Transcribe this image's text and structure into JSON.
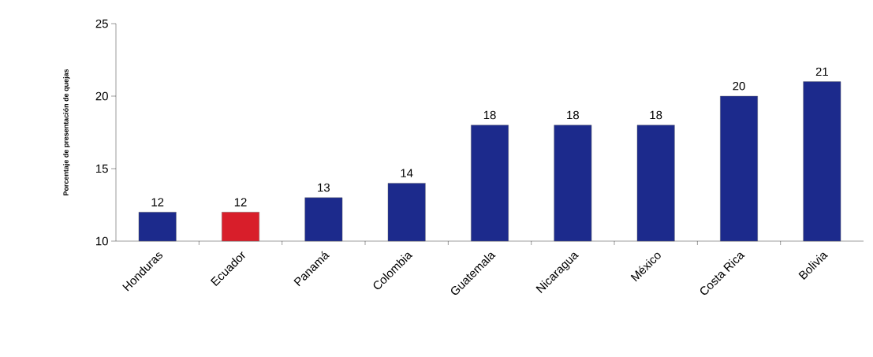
{
  "chart_data": {
    "type": "bar",
    "ylabel": "Porcentaje de presentación de quejas",
    "categories": [
      "Honduras",
      "Ecuador",
      "Panamá",
      "Colombia",
      "Guatemala",
      "Nicaragua",
      "México",
      "Costa Rica",
      "Bolivia"
    ],
    "values": [
      12,
      12,
      13,
      14,
      18,
      18,
      18,
      20,
      21
    ],
    "colors": [
      "#1c2a8c",
      "#d81e2a",
      "#1c2a8c",
      "#1c2a8c",
      "#1c2a8c",
      "#1c2a8c",
      "#1c2a8c",
      "#1c2a8c",
      "#1c2a8c"
    ],
    "ylim": [
      10,
      25
    ],
    "yticks": [
      10,
      15,
      20,
      25
    ],
    "grid": false,
    "data_labels": true
  }
}
